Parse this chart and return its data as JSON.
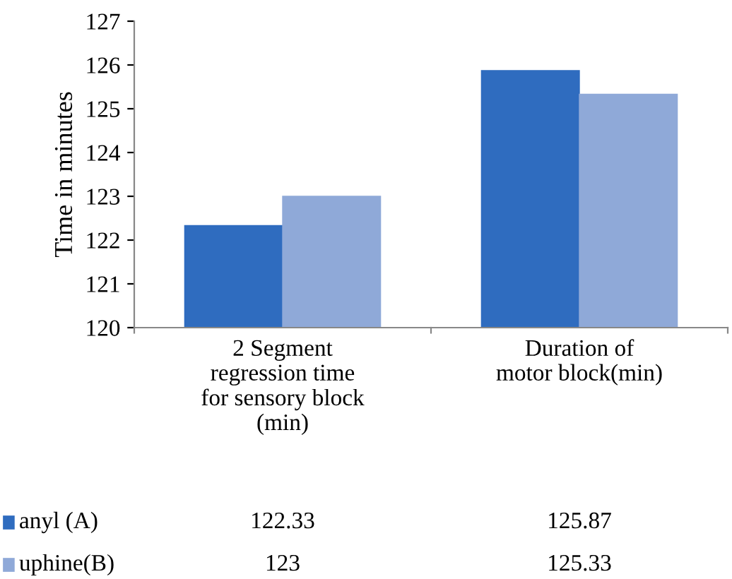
{
  "chart_data": {
    "type": "bar",
    "ylabel": "Time in minutes",
    "categories": [
      "2 Segment\nregression time\nfor sensory block\n(min)",
      "Duration of\nmotor block(min)"
    ],
    "series": [
      {
        "name": "anyl (A)",
        "color": "#2f6cbf",
        "values": [
          122.33,
          125.87
        ]
      },
      {
        "name": "uphine(B)",
        "color": "#8fa9d8",
        "values": [
          123,
          125.33
        ]
      }
    ],
    "ylim": [
      120,
      127
    ],
    "yticks": [
      120,
      121,
      122,
      123,
      124,
      125,
      126,
      127
    ],
    "data_labels": true,
    "grid": false,
    "legend": "bottom"
  }
}
